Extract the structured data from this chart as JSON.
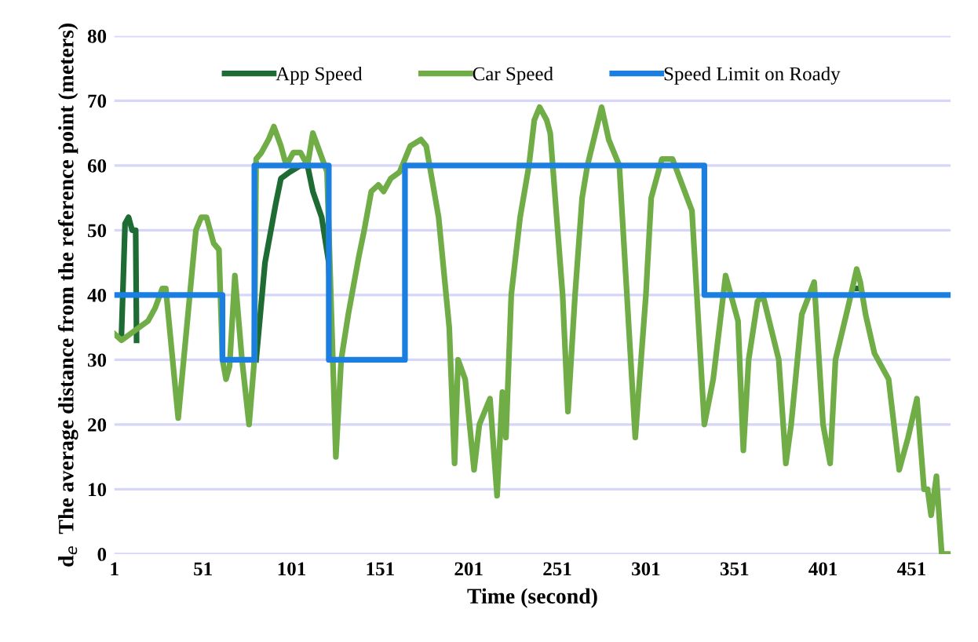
{
  "chart_data": {
    "type": "line",
    "xlabel": "Time (second)",
    "ylabel": "d$_{e}$  The average distance from the reference point (meters)",
    "xlim": [
      1,
      473
    ],
    "xticks": [
      1,
      51,
      101,
      151,
      201,
      251,
      301,
      351,
      401,
      451
    ],
    "ylim": [
      0,
      80
    ],
    "yticks": [
      0,
      10,
      20,
      30,
      40,
      50,
      60,
      70,
      80
    ],
    "grid": "y",
    "legend": "top",
    "line_style": "solid",
    "marker": "none",
    "series": [
      {
        "name": "App Speed",
        "color": "#1e6b34",
        "x": [
          5,
          7,
          9,
          11,
          13,
          13.5,
          null,
          81,
          86,
          92,
          95,
          100,
          106,
          110,
          113,
          118,
          122,
          124,
          null,
          418,
          422
        ],
        "values": [
          34,
          51,
          52,
          50,
          50,
          33,
          null,
          30,
          45,
          54,
          58,
          59,
          60,
          60,
          56,
          52,
          45,
          30,
          null,
          41,
          41
        ]
      },
      {
        "name": "Car Speed",
        "color": "#70ad47",
        "x": [
          1,
          5,
          10,
          15,
          20,
          24,
          28,
          30,
          37,
          47,
          50,
          53,
          57,
          60,
          62,
          64,
          66,
          69,
          73,
          77,
          80,
          81,
          84,
          88,
          91,
          95,
          98,
          102,
          106,
          110,
          113,
          117,
          121,
          126,
          129,
          133,
          139,
          142,
          146,
          150,
          153,
          157,
          162,
          165,
          168,
          174,
          177,
          184,
          190,
          193,
          195,
          199,
          204,
          207,
          213,
          217,
          220,
          222,
          225,
          230,
          235,
          238,
          241,
          245,
          247,
          254,
          257,
          261,
          265,
          268,
          276,
          280,
          286,
          295,
          301,
          304,
          310,
          316,
          327,
          334,
          339,
          346,
          353,
          356,
          359,
          364,
          367,
          376,
          380,
          383,
          389,
          396,
          401,
          405,
          408,
          415,
          420,
          422,
          425,
          430,
          432,
          438,
          444,
          449,
          454,
          458,
          460,
          462,
          465,
          468,
          472
        ],
        "values": [
          34,
          33,
          34,
          35,
          36,
          38,
          41,
          41,
          21,
          50,
          52,
          52,
          48,
          47,
          30,
          27,
          29,
          43,
          30,
          20,
          30,
          61,
          62,
          64,
          66,
          63,
          60,
          62,
          62,
          60,
          65,
          62,
          59,
          15,
          30,
          37,
          46,
          50,
          56,
          57,
          56,
          58,
          59,
          61,
          63,
          64,
          63,
          52,
          35,
          14,
          30,
          27,
          13,
          20,
          24,
          9,
          25,
          18,
          40,
          52,
          60,
          67,
          69,
          67,
          65,
          40,
          22,
          40,
          55,
          60,
          69,
          64,
          60,
          18,
          40,
          55,
          61,
          61,
          53,
          20,
          27,
          43,
          36,
          16,
          30,
          39,
          40,
          30,
          14,
          20,
          37,
          42,
          20,
          14,
          30,
          38,
          44,
          42,
          37,
          31,
          30,
          27,
          13,
          18,
          24,
          10,
          10,
          6,
          12,
          0,
          0
        ]
      },
      {
        "name": "Speed Limit on Roady",
        "type": "step",
        "color": "#1a7fe0",
        "x": [
          1,
          62,
          80,
          122,
          165,
          334,
          473
        ],
        "values": [
          40,
          30,
          60,
          30,
          60,
          40,
          40
        ]
      }
    ]
  }
}
